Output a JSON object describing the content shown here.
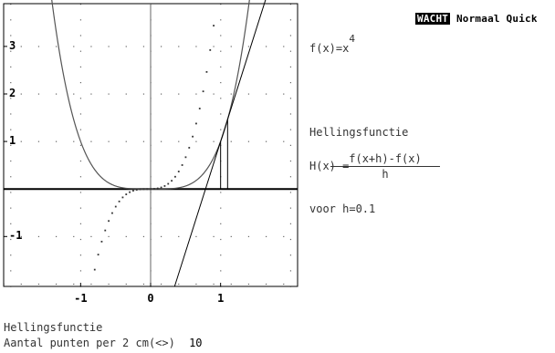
{
  "status_bar": {
    "mode": "WACHT",
    "display": "Normaal",
    "speed": "Quick"
  },
  "formula": {
    "function_label": "f(x)=x",
    "function_exponent": "4",
    "section_title": "Hellingsfunctie",
    "h_label": "H(x) =",
    "h_numerator": "f(x+h)-f(x)",
    "h_denominator": "h",
    "h_value": "voor h=0.1"
  },
  "footer": {
    "title": "Hellingsfunctie",
    "prompt": "Aantal punten per 2 cm(<>)",
    "value": "10"
  },
  "chart_data": {
    "type": "line",
    "xlim": [
      -2.1,
      2.1
    ],
    "ylim": [
      -2.05,
      3.9
    ],
    "x_ticks": [
      {
        "value": -1,
        "label": "-1"
      },
      {
        "value": 0,
        "label": "0"
      },
      {
        "value": 1,
        "label": "1"
      }
    ],
    "y_ticks": [
      {
        "value": 3,
        "label": "3"
      },
      {
        "value": 2,
        "label": "2"
      },
      {
        "value": 1,
        "label": "1"
      },
      {
        "value": -1,
        "label": "-1"
      }
    ],
    "grid": "dotted",
    "series": [
      {
        "kind": "function",
        "expression": "x^4",
        "color": "#555555"
      },
      {
        "kind": "slope-points",
        "expression": "((x+0.1)^4-x^4)/0.1",
        "step": 0.1,
        "x_range": [
          -1.0,
          1.0
        ],
        "color": "#333333"
      },
      {
        "kind": "secant",
        "x1": 1.0,
        "x2": 1.1,
        "color": "#000000"
      }
    ]
  }
}
